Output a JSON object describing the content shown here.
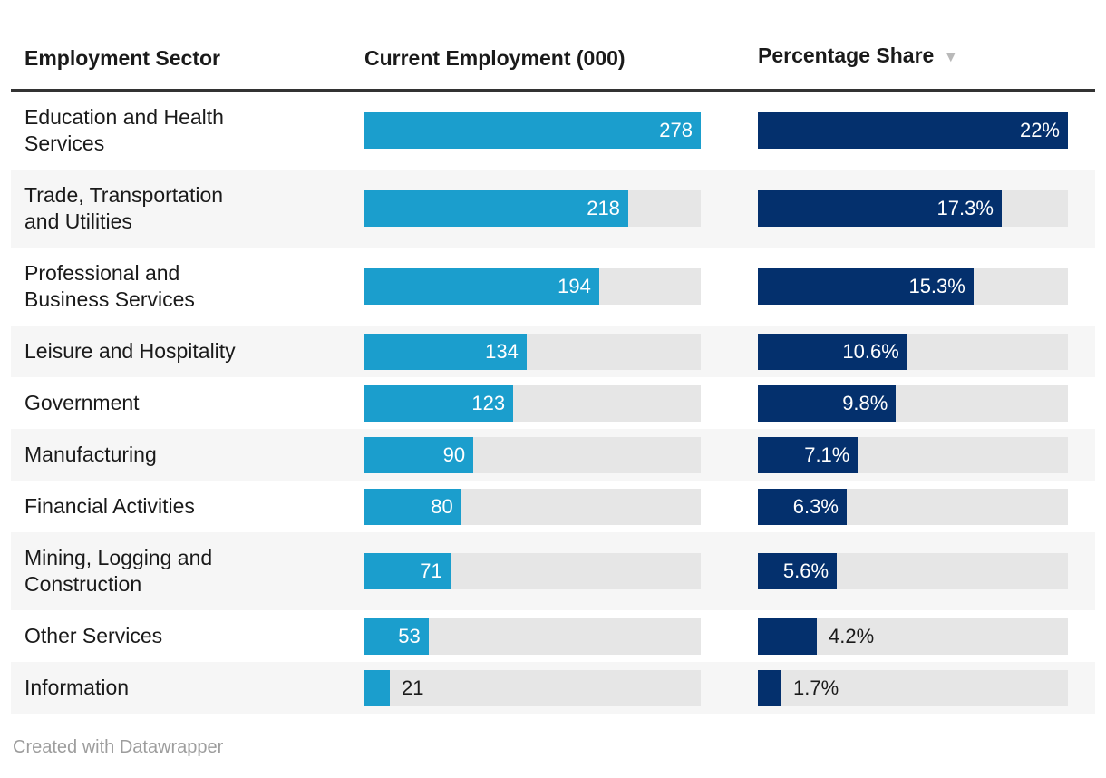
{
  "header": {
    "sort_icon": "▼",
    "sorted_column": "Percentage Share",
    "sort_direction": "descending"
  },
  "chart_data": {
    "type": "table",
    "columns": [
      "Employment Sector",
      "Current Employment (000)",
      "Percentage Share"
    ],
    "employment_axis_max": 278,
    "share_axis_max": 22,
    "rows": [
      {
        "sector": "Education and Health Services",
        "sector_display": "Education and Health\nServices",
        "employment_000": 278,
        "employment_label": "278",
        "share_pct": 22,
        "share_label": "22%"
      },
      {
        "sector": "Trade, Transportation and Utilities",
        "sector_display": "Trade, Transportation\nand Utilities",
        "employment_000": 218,
        "employment_label": "218",
        "share_pct": 17.3,
        "share_label": "17.3%"
      },
      {
        "sector": "Professional and Business Services",
        "sector_display": "Professional and\nBusiness Services",
        "employment_000": 194,
        "employment_label": "194",
        "share_pct": 15.3,
        "share_label": "15.3%"
      },
      {
        "sector": "Leisure and Hospitality",
        "sector_display": "Leisure and Hospitality",
        "employment_000": 134,
        "employment_label": "134",
        "share_pct": 10.6,
        "share_label": "10.6%"
      },
      {
        "sector": "Government",
        "sector_display": "Government",
        "employment_000": 123,
        "employment_label": "123",
        "share_pct": 9.8,
        "share_label": "9.8%"
      },
      {
        "sector": "Manufacturing",
        "sector_display": "Manufacturing",
        "employment_000": 90,
        "employment_label": "90",
        "share_pct": 7.1,
        "share_label": "7.1%"
      },
      {
        "sector": "Financial Activities",
        "sector_display": "Financial Activities",
        "employment_000": 80,
        "employment_label": "80",
        "share_pct": 6.3,
        "share_label": "6.3%"
      },
      {
        "sector": "Mining, Logging and Construction",
        "sector_display": "Mining, Logging and\nConstruction",
        "employment_000": 71,
        "employment_label": "71",
        "share_pct": 5.6,
        "share_label": "5.6%"
      },
      {
        "sector": "Other Services",
        "sector_display": "Other Services",
        "employment_000": 53,
        "employment_label": "53",
        "share_pct": 4.2,
        "share_label": "4.2%"
      },
      {
        "sector": "Information",
        "sector_display": "Information",
        "employment_000": 21,
        "employment_label": "21",
        "share_pct": 1.7,
        "share_label": "1.7%"
      }
    ]
  },
  "footer": {
    "credit": "Created with Datawrapper"
  },
  "colors": {
    "employment_bar": "#1b9ecd",
    "share_bar": "#04306d",
    "track": "#e6e6e6",
    "row_stripe": "#f6f6f6",
    "header_rule": "#333333",
    "text": "#1a1a1a",
    "bar_label": "#ffffff",
    "credit": "#9d9d9d",
    "sort_icon": "#b9b9b9"
  }
}
